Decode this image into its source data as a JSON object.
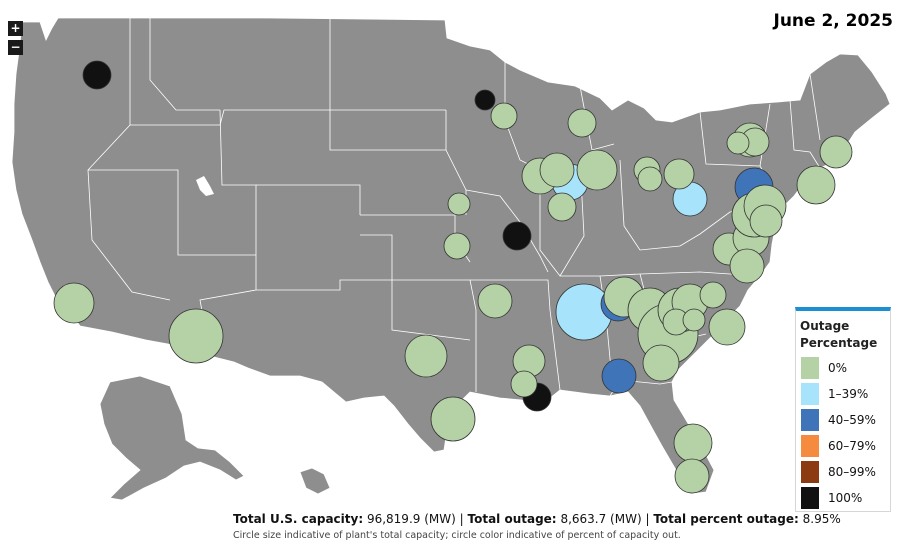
{
  "date": "June 2, 2025",
  "zoom": {
    "in_label": "+",
    "out_label": "−"
  },
  "legend": {
    "title": "Outage Percentage",
    "items": [
      {
        "label": "0%",
        "color": "#b5d1a6"
      },
      {
        "label": "1–39%",
        "color": "#a7e3fb"
      },
      {
        "label": "40–59%",
        "color": "#3f74b8"
      },
      {
        "label": "60–79%",
        "color": "#f58b3f"
      },
      {
        "label": "80–99%",
        "color": "#8c3a12"
      },
      {
        "label": "100%",
        "color": "#111111"
      }
    ]
  },
  "summary": {
    "capacity_label": "Total U.S. capacity:",
    "capacity_value": "96,819.9 (MW)",
    "outage_label": "Total outage:",
    "outage_value": "8,663.7 (MW)",
    "percent_label": "Total percent outage:",
    "percent_value": "8.95%",
    "separator": "|"
  },
  "note": "Circle size indicative of plant's total capacity; circle color indicative of percent of capacity out.",
  "colors": {
    "land": "#8e8e8e",
    "border": "#ffffff",
    "accent": "#1a8fd1"
  }
}
